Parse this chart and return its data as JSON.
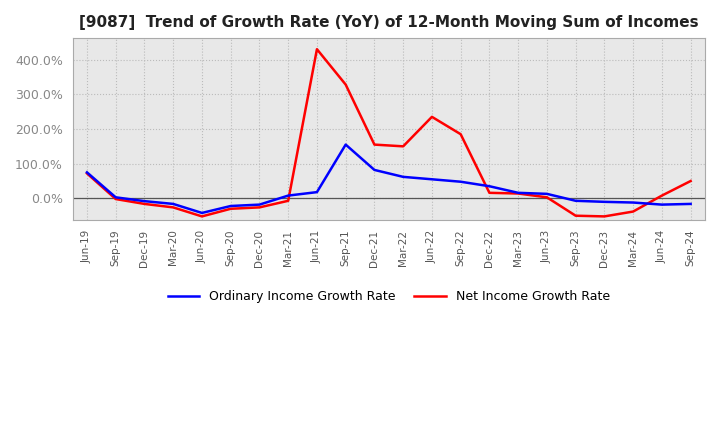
{
  "title": "[9087]  Trend of Growth Rate (YoY) of 12-Month Moving Sum of Incomes",
  "x_labels": [
    "Jun-19",
    "Sep-19",
    "Dec-19",
    "Mar-20",
    "Jun-20",
    "Sep-20",
    "Dec-20",
    "Mar-21",
    "Jun-21",
    "Sep-21",
    "Dec-21",
    "Mar-22",
    "Jun-22",
    "Sep-22",
    "Dec-22",
    "Mar-23",
    "Jun-23",
    "Sep-23",
    "Dec-23",
    "Mar-24",
    "Jun-24",
    "Sep-24"
  ],
  "ordinary_income": [
    0.75,
    0.03,
    -0.08,
    -0.16,
    -0.42,
    -0.22,
    -0.18,
    0.08,
    0.18,
    1.55,
    0.82,
    0.62,
    0.55,
    0.48,
    0.35,
    0.16,
    0.13,
    -0.07,
    -0.1,
    -0.12,
    -0.18,
    -0.16
  ],
  "net_income": [
    0.72,
    -0.02,
    -0.16,
    -0.26,
    -0.52,
    -0.3,
    -0.26,
    -0.07,
    4.3,
    3.28,
    1.55,
    1.5,
    2.35,
    1.85,
    0.16,
    0.14,
    0.03,
    -0.5,
    -0.52,
    -0.38,
    0.08,
    0.5
  ],
  "ordinary_color": "#0000ff",
  "net_color": "#ff0000",
  "plot_bg_color": "#e8e8e8",
  "fig_bg_color": "#ffffff",
  "grid_color": "#bbbbbb",
  "zero_line_color": "#555555",
  "ytick_color": "#888888",
  "xtick_color": "#555555",
  "title_color": "#222222",
  "legend_ordinary": "Ordinary Income Growth Rate",
  "legend_net": "Net Income Growth Rate",
  "ylim_min": -0.62,
  "ylim_max": 4.62,
  "ytick_vals": [
    0.0,
    1.0,
    2.0,
    3.0,
    4.0
  ],
  "ytick_labels": [
    "0.0%",
    "100.0%",
    "200.0%",
    "300.0%",
    "400.0%"
  ],
  "line_width": 1.8
}
